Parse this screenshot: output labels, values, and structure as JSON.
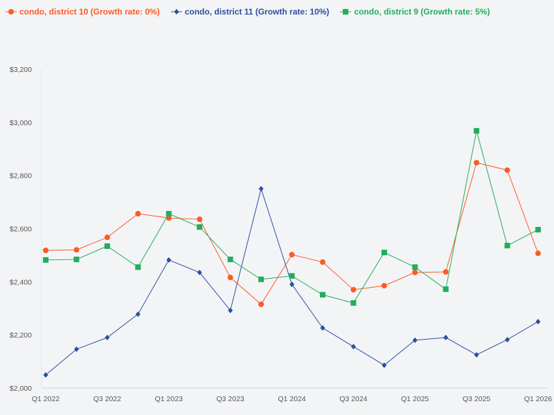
{
  "chart_data": {
    "type": "line",
    "categories": [
      "Q1 2022",
      "Q2 2022",
      "Q3 2022",
      "Q4 2022",
      "Q1 2023",
      "Q2 2023",
      "Q3 2023",
      "Q4 2023",
      "Q1 2024",
      "Q2 2024",
      "Q3 2024",
      "Q4 2024",
      "Q1 2025",
      "Q2 2025",
      "Q3 2025",
      "Q4 2025",
      "Q1 2026"
    ],
    "xticks": [
      "Q1 2022",
      "Q3 2022",
      "Q1 2023",
      "Q3 2023",
      "Q1 2024",
      "Q3 2024",
      "Q1 2025",
      "Q3 2025",
      "Q1 2026"
    ],
    "yticks": [
      "$2,000",
      "$2,200",
      "$2,400",
      "$2,600",
      "$2,800",
      "$3,000",
      "$3,200"
    ],
    "ylim": [
      2000,
      3200
    ],
    "grid": false,
    "legend": "top-left",
    "series": [
      {
        "name": "condo, district 10 (Growth rate: 0%)",
        "color": "#fc5a24",
        "marker": "circle",
        "values": [
          2518,
          2520,
          2567,
          2656,
          2640,
          2635,
          2416,
          2315,
          2502,
          2474,
          2370,
          2385,
          2435,
          2437,
          2848,
          2820,
          2507
        ]
      },
      {
        "name": "condo, district 11 (Growth rate: 10%)",
        "color": "#2a4fa0",
        "marker": "diamond",
        "values": [
          2049,
          2146,
          2190,
          2278,
          2482,
          2435,
          2292,
          2750,
          2390,
          2226,
          2156,
          2086,
          2180,
          2190,
          2125,
          2182,
          2250
        ]
      },
      {
        "name": "condo, district 9 (Growth rate: 5%)",
        "color": "#22ad5c",
        "marker": "square",
        "values": [
          2482,
          2484,
          2534,
          2455,
          2656,
          2606,
          2484,
          2409,
          2422,
          2351,
          2320,
          2510,
          2455,
          2372,
          2968,
          2536,
          2596
        ]
      }
    ]
  }
}
